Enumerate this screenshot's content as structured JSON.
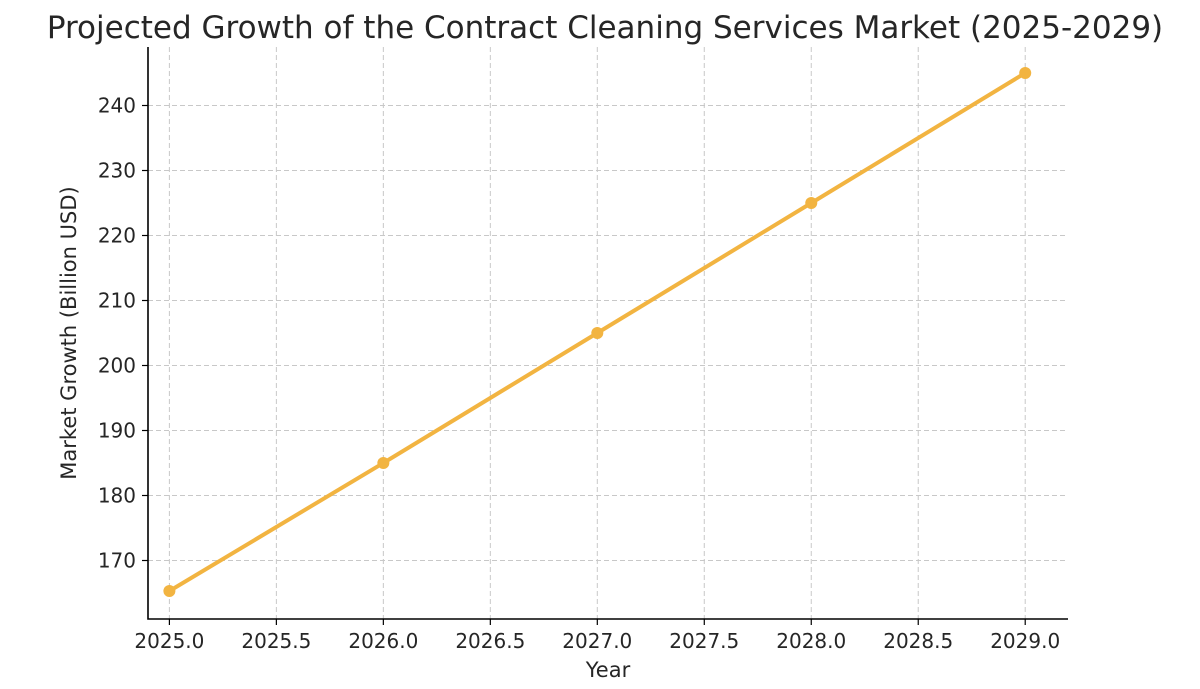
{
  "chart_data": {
    "type": "line",
    "title": "Projected Growth of the Contract Cleaning Services Market (2025-2029)",
    "xlabel": "Year",
    "ylabel": "Market Growth (Billion USD)",
    "x": [
      2025,
      2026,
      2027,
      2028,
      2029
    ],
    "series": [
      {
        "values": [
          165.3,
          185,
          205,
          225,
          245
        ]
      }
    ],
    "xlim": [
      2024.9,
      2029.2
    ],
    "ylim": [
      161,
      249
    ],
    "x_ticks": [
      2025.0,
      2025.5,
      2026.0,
      2026.5,
      2027.0,
      2027.5,
      2028.0,
      2028.5,
      2029.0
    ],
    "x_tick_labels": [
      "2025.0",
      "2025.5",
      "2026.0",
      "2026.5",
      "2027.0",
      "2027.5",
      "2028.0",
      "2028.5",
      "2029.0"
    ],
    "y_ticks": [
      170,
      180,
      190,
      200,
      210,
      220,
      230,
      240
    ],
    "y_tick_labels": [
      "170",
      "180",
      "190",
      "200",
      "210",
      "220",
      "230",
      "240"
    ],
    "grid": true,
    "line_color": "#f2b441",
    "marker": "circle"
  }
}
